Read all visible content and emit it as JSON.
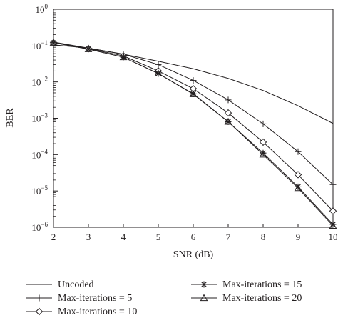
{
  "chart_data": {
    "type": "line",
    "title": "",
    "xlabel": "SNR (dB)",
    "ylabel": "BER",
    "x": [
      2,
      3,
      4,
      5,
      6,
      7,
      8,
      9,
      10
    ],
    "xlim": [
      2,
      10
    ],
    "ylim": [
      1e-06,
      1
    ],
    "yscale": "log",
    "x_ticks": [
      "2",
      "3",
      "4",
      "5",
      "6",
      "7",
      "8",
      "9",
      "10"
    ],
    "y_ticks": [
      {
        "base": "10",
        "exp": "0"
      },
      {
        "base": "10",
        "exp": "−1"
      },
      {
        "base": "10",
        "exp": "−2"
      },
      {
        "base": "10",
        "exp": "−3"
      },
      {
        "base": "10",
        "exp": "−4"
      },
      {
        "base": "10",
        "exp": "−5"
      },
      {
        "base": "10",
        "exp": "−6"
      }
    ],
    "grid": false,
    "legend_position": "below",
    "line_color": "#231f20",
    "series": [
      {
        "name": "Uncoded",
        "marker": "none",
        "values": [
          0.105,
          0.085,
          0.058,
          0.037,
          0.023,
          0.0125,
          0.0058,
          0.0022,
          0.00072
        ]
      },
      {
        "name": "Max-iterations = 5",
        "marker": "plus",
        "values": [
          0.125,
          0.085,
          0.058,
          0.03,
          0.011,
          0.0032,
          0.0007,
          0.00012,
          1.5e-05
        ]
      },
      {
        "name": "Max-iterations = 10",
        "marker": "diamond",
        "values": [
          0.12,
          0.083,
          0.052,
          0.02,
          0.0065,
          0.0014,
          0.00022,
          2.8e-05,
          2.8e-06
        ]
      },
      {
        "name": "Max-iterations = 15",
        "marker": "asterisk",
        "values": [
          0.12,
          0.08,
          0.048,
          0.017,
          0.0047,
          0.0008,
          0.00011,
          1.3e-05,
          1.2e-06
        ]
      },
      {
        "name": "Max-iterations = 20",
        "marker": "triangle",
        "values": [
          0.12,
          0.08,
          0.048,
          0.017,
          0.0046,
          0.0008,
          0.0001,
          1.2e-05,
          1.1e-06
        ]
      }
    ]
  }
}
